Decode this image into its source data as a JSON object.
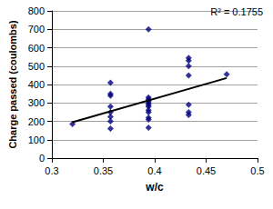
{
  "chart_data": {
    "type": "scatter",
    "annotation": "R² = 0.1755",
    "x_label": "w/c",
    "y_label": "Charge passed (coulombs)",
    "series": [
      {
        "type": "scatter",
        "marker": "diamond",
        "color": "#000080",
        "x": [
          0.32,
          0.357,
          0.357,
          0.357,
          0.357,
          0.357,
          0.357,
          0.357,
          0.357,
          0.394,
          0.394,
          0.394,
          0.394,
          0.394,
          0.394,
          0.394,
          0.394,
          0.394,
          0.394,
          0.394,
          0.394,
          0.433,
          0.433,
          0.433,
          0.433,
          0.433,
          0.433,
          0.433,
          0.47
        ],
        "values": [
          185,
          410,
          350,
          340,
          280,
          250,
          225,
          200,
          160,
          700,
          330,
          320,
          310,
          300,
          290,
          280,
          260,
          250,
          220,
          210,
          165,
          545,
          530,
          500,
          450,
          290,
          250,
          235,
          455
        ]
      },
      {
        "type": "line",
        "line_style": "solid",
        "color": "#000000",
        "x": [
          0.32,
          0.47
        ],
        "values": [
          195,
          435
        ]
      }
    ],
    "xlim": [
      0.3,
      0.5
    ],
    "xticks": [
      0.3,
      0.35,
      0.4,
      0.45,
      0.5
    ],
    "ylim": [
      0,
      800
    ],
    "yticks": [
      0,
      100,
      200,
      300,
      400,
      500,
      600,
      700,
      800
    ],
    "grid": true
  }
}
